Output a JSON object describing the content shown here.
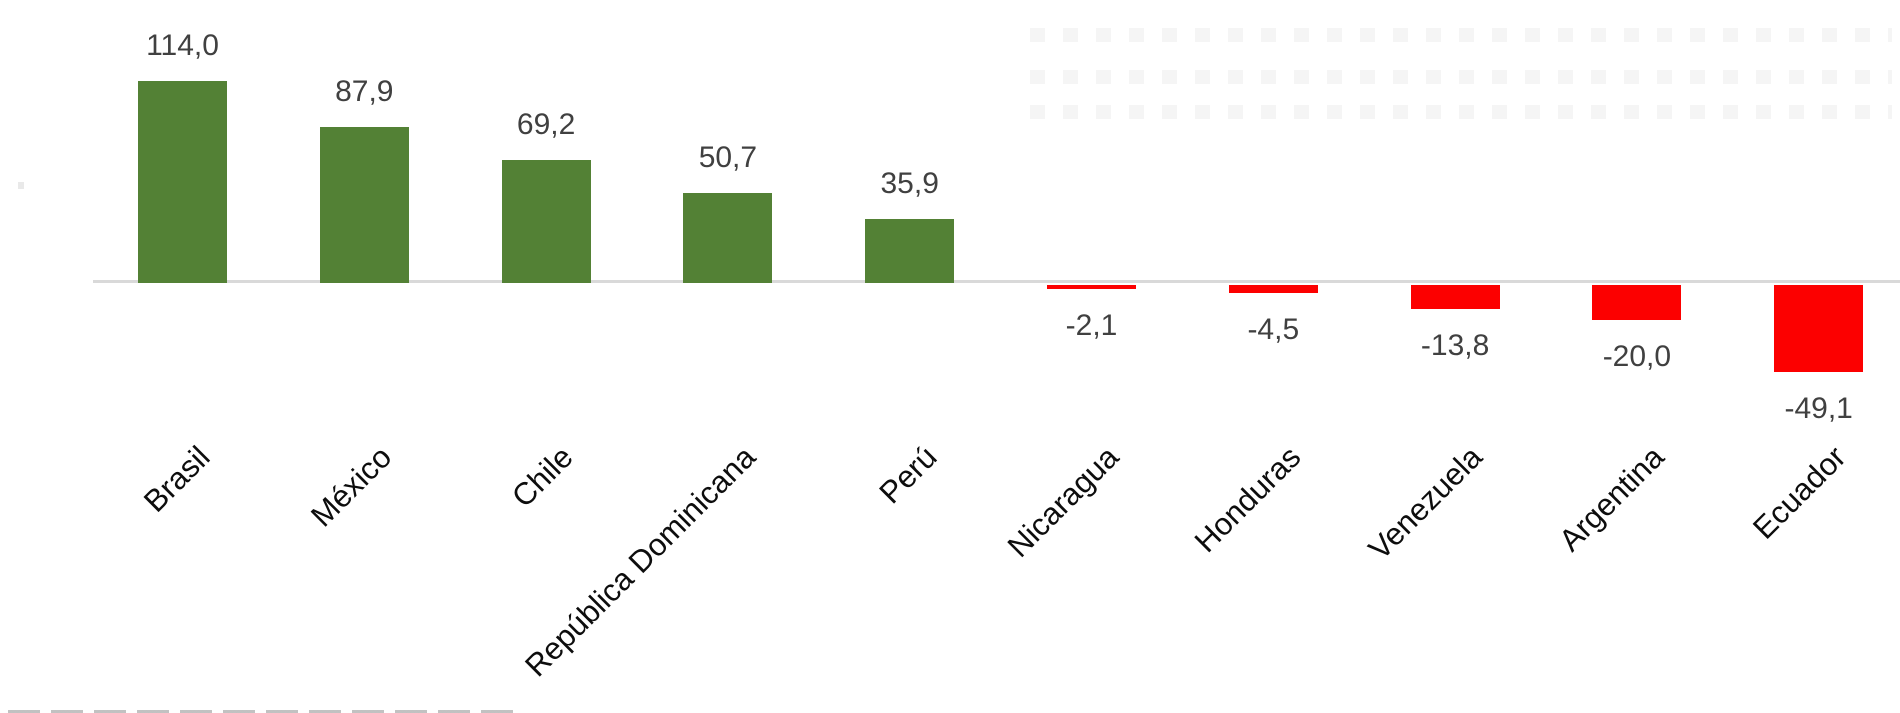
{
  "chart_data": {
    "type": "bar",
    "title": "",
    "xlabel": "",
    "ylabel": "",
    "categories": [
      "Brasil",
      "México",
      "Chile",
      "República Dominicana",
      "Perú",
      "Nicaragua",
      "Honduras",
      "Venezuela",
      "Argentina",
      "Ecuador"
    ],
    "values": [
      114.0,
      87.9,
      69.2,
      50.7,
      35.9,
      -2.1,
      -4.5,
      -13.8,
      -20.0,
      -49.1
    ],
    "value_labels": [
      "114,0",
      "87,9",
      "69,2",
      "50,7",
      "35,9",
      "-2,1",
      "-4,5",
      "-13,8",
      "-20,0",
      "-49,1"
    ],
    "number_format": "decimal-comma, one decimal place",
    "data_label_position": "outside end",
    "ylim": [
      -60,
      125
    ],
    "grid": false,
    "legend": false,
    "x_axis_ticks": "none (only baseline shown)",
    "category_label_rotation_deg": 45,
    "colors": {
      "positive_bar": "#538135",
      "negative_bar": "#fc0000",
      "axis_line": "#d9d9d9",
      "value_label_text": "#404040",
      "category_label_text": "#0d0d0d"
    }
  }
}
